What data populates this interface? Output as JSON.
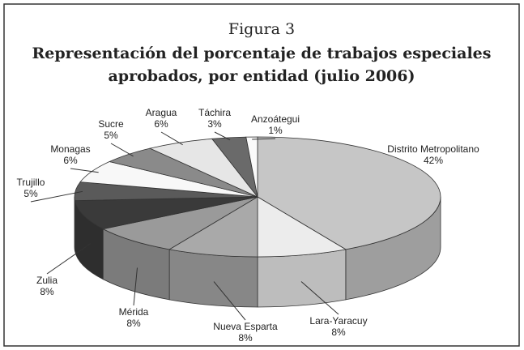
{
  "chart_data": {
    "type": "pie3d",
    "title": "Figura 3",
    "subtitle": "Representación del porcentaje de trabajos especiales aprobados, por entidad (julio 2006)",
    "categories": [
      "Distrito Metropolitano",
      "Lara-Yaracuy",
      "Nueva Esparta",
      "Mérida",
      "Zulia",
      "Trujillo",
      "Monagas",
      "Sucre",
      "Aragua",
      "Táchira",
      "Anzoátegui"
    ],
    "values": [
      42,
      8,
      8,
      8,
      8,
      5,
      6,
      5,
      6,
      3,
      1
    ],
    "value_labels": [
      "42%",
      "8%",
      "8%",
      "8%",
      "8%",
      "5%",
      "6%",
      "5%",
      "6%",
      "3%",
      "1%"
    ],
    "colors": [
      "#c6c6c6",
      "#ececec",
      "#a9a9a9",
      "#9a9a9a",
      "#3a3a3a",
      "#5a5a5a",
      "#f8f8f8",
      "#8a8a8a",
      "#e6e6e6",
      "#6a6a6a",
      "#fafafa"
    ]
  }
}
